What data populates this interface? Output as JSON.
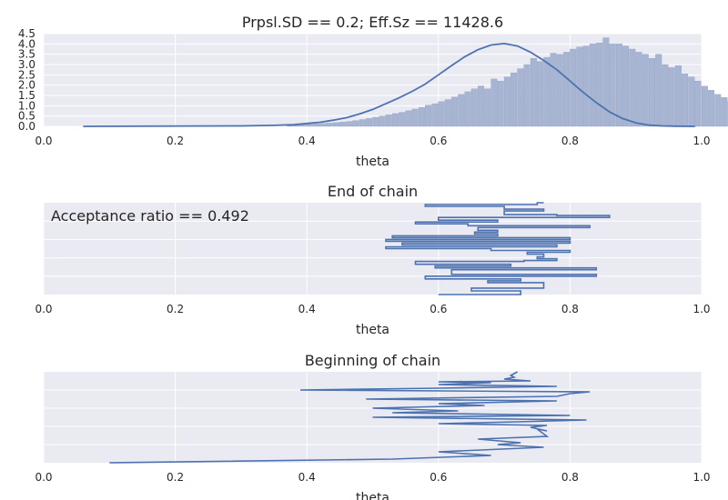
{
  "figure": {
    "panels": [
      {
        "key": "hist",
        "title": "Prpsl.SD == 0.2; Eff.Sz == 11428.6",
        "xlabel": "theta",
        "xticks": [
          "0.0",
          "0.2",
          "0.4",
          "0.6",
          "0.8",
          "1.0"
        ],
        "yticks": [
          "0.0",
          "0.5",
          "1.0",
          "1.5",
          "2.0",
          "2.5",
          "3.0",
          "3.5",
          "4.0",
          "4.5"
        ]
      },
      {
        "key": "end",
        "title": "End of chain",
        "xlabel": "theta",
        "annotation": "Acceptance ratio == 0.492",
        "xticks": [
          "0.0",
          "0.2",
          "0.4",
          "0.6",
          "0.8",
          "1.0"
        ]
      },
      {
        "key": "begin",
        "title": "Beginning of chain",
        "xlabel": "theta",
        "xticks": [
          "0.0",
          "0.2",
          "0.4",
          "0.6",
          "0.8",
          "1.0"
        ]
      }
    ]
  },
  "colors": {
    "background": "#eaeaf2",
    "grid": "#ffffff",
    "line": "#4c72b0",
    "bars": "#a7b5d2",
    "text": "#262626"
  },
  "chart_data": [
    {
      "type": "bar",
      "title": "Prpsl.SD == 0.2; Eff.Sz == 11428.6",
      "xlabel": "theta",
      "ylabel": "",
      "xlim": [
        0,
        1
      ],
      "ylim": [
        0,
        4.5
      ],
      "bin_width": 0.01,
      "bin_start": 0.37,
      "bars": [
        0.05,
        0.07,
        0.09,
        0.11,
        0.12,
        0.14,
        0.16,
        0.18,
        0.21,
        0.24,
        0.28,
        0.33,
        0.38,
        0.44,
        0.5,
        0.56,
        0.62,
        0.68,
        0.76,
        0.84,
        0.92,
        1.02,
        1.1,
        1.2,
        1.3,
        1.42,
        1.55,
        1.68,
        1.82,
        1.96,
        1.82,
        2.3,
        2.2,
        2.4,
        2.6,
        2.8,
        3.0,
        3.3,
        3.15,
        3.35,
        3.55,
        3.5,
        3.6,
        3.75,
        3.85,
        3.9,
        4.0,
        4.05,
        4.3,
        4.0,
        4.0,
        3.9,
        3.75,
        3.6,
        3.5,
        3.3,
        3.5,
        3.0,
        2.85,
        2.95,
        2.55,
        2.4,
        2.2,
        1.95,
        1.75,
        1.55,
        1.4,
        1.2,
        1.0,
        0.82,
        0.65,
        0.5,
        0.38,
        0.28,
        0.2,
        0.14,
        0.09,
        0.06
      ],
      "series": [
        {
          "name": "",
          "type": "line",
          "x": [
            0.06,
            0.3,
            0.35,
            0.38,
            0.4,
            0.42,
            0.44,
            0.46,
            0.48,
            0.5,
            0.52,
            0.54,
            0.56,
            0.58,
            0.6,
            0.62,
            0.64,
            0.66,
            0.68,
            0.7,
            0.72,
            0.74,
            0.76,
            0.78,
            0.8,
            0.82,
            0.84,
            0.86,
            0.88,
            0.9,
            0.92,
            0.94,
            0.96,
            0.99
          ],
          "y": [
            0.0,
            0.02,
            0.05,
            0.08,
            0.14,
            0.2,
            0.3,
            0.42,
            0.6,
            0.82,
            1.1,
            1.38,
            1.7,
            2.05,
            2.5,
            2.95,
            3.38,
            3.72,
            3.95,
            4.02,
            3.9,
            3.6,
            3.2,
            2.75,
            2.2,
            1.65,
            1.15,
            0.7,
            0.38,
            0.17,
            0.06,
            0.02,
            0.01,
            0.0
          ]
        }
      ]
    },
    {
      "type": "line",
      "title": "End of chain",
      "xlabel": "theta",
      "annotation": "Acceptance ratio == 0.492",
      "xlim": [
        0,
        1
      ],
      "ylim": [
        0,
        1
      ],
      "series": [
        {
          "name": "",
          "x": [
            0.6,
            0.6,
            0.725,
            0.725,
            0.65,
            0.65,
            0.76,
            0.76,
            0.675,
            0.675,
            0.725,
            0.725,
            0.58,
            0.58,
            0.84,
            0.84,
            0.62,
            0.62,
            0.84,
            0.84,
            0.595,
            0.595,
            0.71,
            0.71,
            0.565,
            0.565,
            0.73,
            0.73,
            0.78,
            0.78,
            0.75,
            0.75,
            0.76,
            0.76,
            0.735,
            0.735,
            0.8,
            0.8,
            0.68,
            0.68,
            0.52,
            0.52,
            0.78,
            0.78,
            0.545,
            0.545,
            0.8,
            0.8,
            0.52,
            0.52,
            0.8,
            0.8,
            0.53,
            0.53,
            0.69,
            0.69,
            0.655,
            0.655,
            0.69,
            0.69,
            0.66,
            0.66,
            0.83,
            0.83,
            0.645,
            0.645,
            0.565,
            0.565,
            0.69,
            0.69,
            0.6,
            0.6,
            0.86,
            0.86,
            0.78,
            0.78,
            0.7,
            0.7,
            0.76,
            0.76,
            0.7,
            0.7,
            0.58,
            0.58,
            0.75,
            0.75,
            0.76
          ],
          "y": [
            0.0,
            0.0,
            0.0,
            0.04,
            0.04,
            0.07,
            0.07,
            0.13,
            0.13,
            0.15,
            0.15,
            0.17,
            0.17,
            0.2,
            0.2,
            0.22,
            0.22,
            0.27,
            0.27,
            0.29,
            0.29,
            0.31,
            0.31,
            0.33,
            0.33,
            0.36,
            0.36,
            0.37,
            0.37,
            0.39,
            0.39,
            0.41,
            0.41,
            0.44,
            0.44,
            0.46,
            0.46,
            0.48,
            0.48,
            0.5,
            0.5,
            0.52,
            0.52,
            0.54,
            0.54,
            0.56,
            0.56,
            0.58,
            0.58,
            0.6,
            0.6,
            0.62,
            0.62,
            0.64,
            0.64,
            0.66,
            0.66,
            0.68,
            0.68,
            0.7,
            0.7,
            0.73,
            0.73,
            0.75,
            0.75,
            0.77,
            0.77,
            0.79,
            0.79,
            0.81,
            0.81,
            0.84,
            0.84,
            0.86,
            0.86,
            0.87,
            0.87,
            0.91,
            0.91,
            0.93,
            0.93,
            0.96,
            0.96,
            0.98,
            0.98,
            1.0,
            1.0
          ]
        }
      ]
    },
    {
      "type": "line",
      "title": "Beginning of chain",
      "xlabel": "theta",
      "xlim": [
        0,
        1
      ],
      "ylim": [
        0,
        1
      ],
      "series": [
        {
          "name": "",
          "x": [
            0.1,
            0.1,
            0.53,
            0.53,
            0.68,
            0.68,
            0.6,
            0.6,
            0.76,
            0.76,
            0.69,
            0.69,
            0.725,
            0.725,
            0.66,
            0.66,
            0.765,
            0.765,
            0.75,
            0.75,
            0.765,
            0.765,
            0.74,
            0.74,
            0.765,
            0.765,
            0.6,
            0.6,
            0.72,
            0.72,
            0.825,
            0.825,
            0.5,
            0.5,
            0.8,
            0.8,
            0.53,
            0.53,
            0.63,
            0.63,
            0.5,
            0.5,
            0.67,
            0.67,
            0.6,
            0.6,
            0.78,
            0.78,
            0.49,
            0.49,
            0.78,
            0.78,
            0.8,
            0.8,
            0.83,
            0.83,
            0.39,
            0.39,
            0.6,
            0.6,
            0.78,
            0.78,
            0.6,
            0.6,
            0.68,
            0.68,
            0.6,
            0.6,
            0.74,
            0.74,
            0.7,
            0.7,
            0.715,
            0.715,
            0.71,
            0.71,
            0.72
          ],
          "y": [
            0.0,
            0.0,
            0.04,
            0.04,
            0.08,
            0.08,
            0.12,
            0.12,
            0.17,
            0.17,
            0.2,
            0.2,
            0.22,
            0.22,
            0.26,
            0.26,
            0.29,
            0.29,
            0.37,
            0.37,
            0.35,
            0.35,
            0.39,
            0.39,
            0.41,
            0.41,
            0.43,
            0.43,
            0.45,
            0.45,
            0.47,
            0.47,
            0.5,
            0.5,
            0.52,
            0.52,
            0.55,
            0.55,
            0.57,
            0.57,
            0.6,
            0.6,
            0.63,
            0.63,
            0.65,
            0.65,
            0.68,
            0.68,
            0.7,
            0.7,
            0.73,
            0.73,
            0.76,
            0.76,
            0.78,
            0.78,
            0.8,
            0.8,
            0.82,
            0.82,
            0.84,
            0.84,
            0.86,
            0.86,
            0.88,
            0.88,
            0.89,
            0.89,
            0.9,
            0.9,
            0.92,
            0.92,
            0.94,
            0.94,
            0.96,
            0.96,
            1.0
          ]
        }
      ]
    }
  ]
}
